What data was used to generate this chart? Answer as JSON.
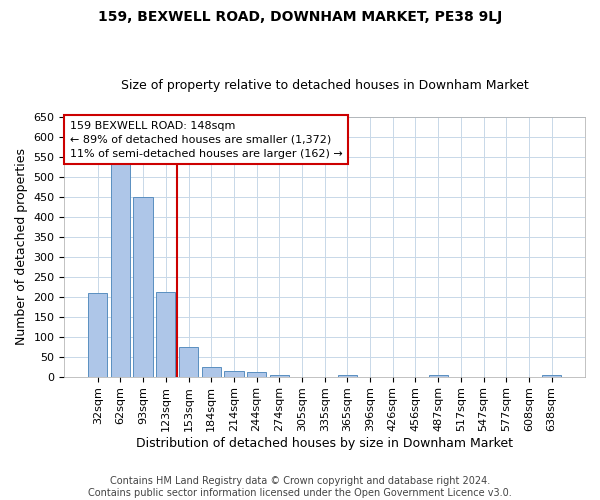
{
  "title": "159, BEXWELL ROAD, DOWNHAM MARKET, PE38 9LJ",
  "subtitle": "Size of property relative to detached houses in Downham Market",
  "xlabel": "Distribution of detached houses by size in Downham Market",
  "ylabel": "Number of detached properties",
  "categories": [
    "32sqm",
    "62sqm",
    "93sqm",
    "123sqm",
    "153sqm",
    "184sqm",
    "214sqm",
    "244sqm",
    "274sqm",
    "305sqm",
    "335sqm",
    "365sqm",
    "396sqm",
    "426sqm",
    "456sqm",
    "487sqm",
    "517sqm",
    "547sqm",
    "577sqm",
    "608sqm",
    "638sqm"
  ],
  "values": [
    210,
    533,
    450,
    212,
    75,
    25,
    14,
    11,
    5,
    0,
    0,
    5,
    0,
    0,
    0,
    5,
    0,
    0,
    0,
    0,
    4
  ],
  "bar_color": "#aec6e8",
  "bar_edge_color": "#5a8fc0",
  "vline_color": "#cc0000",
  "vline_x": 3.5,
  "ylim": [
    0,
    650
  ],
  "yticks": [
    0,
    50,
    100,
    150,
    200,
    250,
    300,
    350,
    400,
    450,
    500,
    550,
    600,
    650
  ],
  "annotation_text": "159 BEXWELL ROAD: 148sqm\n← 89% of detached houses are smaller (1,372)\n11% of semi-detached houses are larger (162) →",
  "annotation_box_color": "#ffffff",
  "annotation_box_edge": "#cc0000",
  "footer1": "Contains HM Land Registry data © Crown copyright and database right 2024.",
  "footer2": "Contains public sector information licensed under the Open Government Licence v3.0.",
  "background_color": "#ffffff",
  "grid_color": "#c8d8e8",
  "title_fontsize": 10,
  "subtitle_fontsize": 9,
  "axis_label_fontsize": 9,
  "tick_fontsize": 8,
  "footer_fontsize": 7
}
